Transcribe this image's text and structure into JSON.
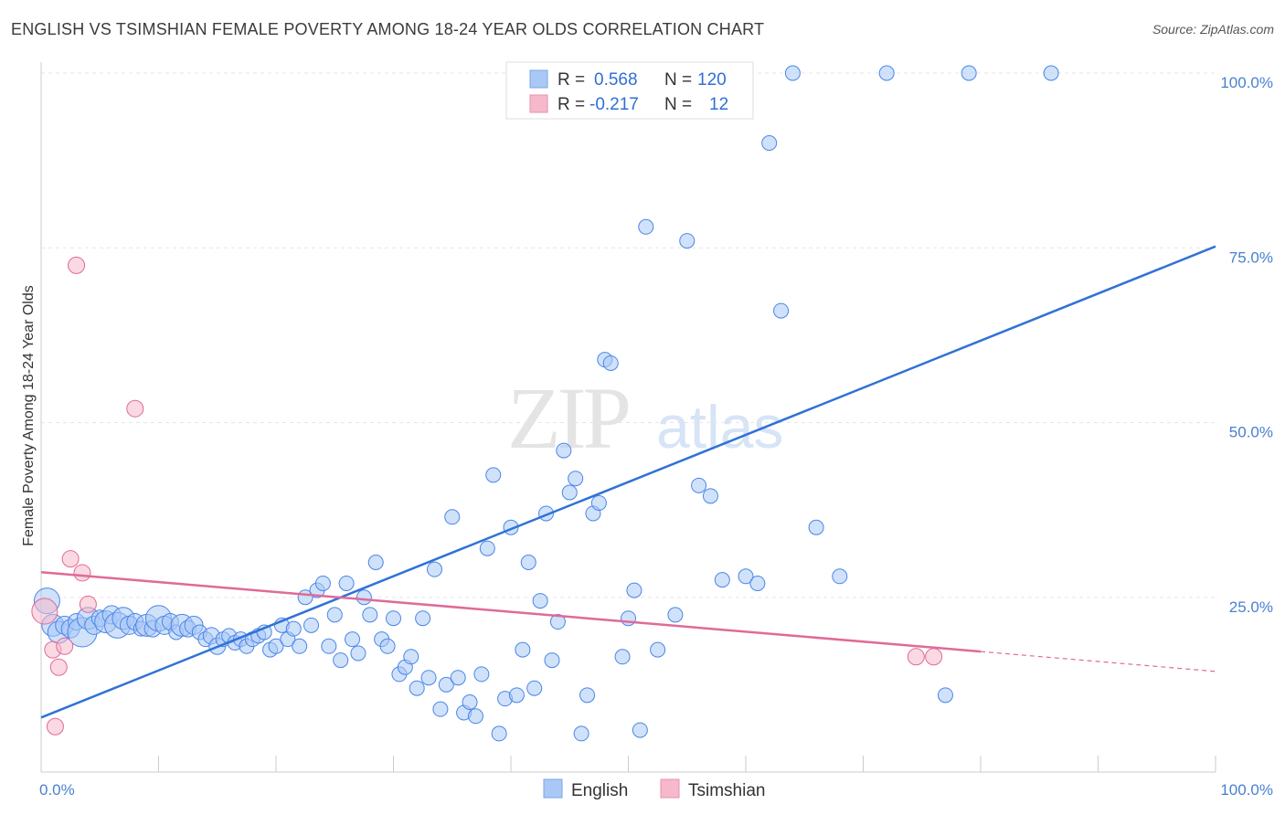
{
  "title": "ENGLISH VS TSIMSHIAN FEMALE POVERTY AMONG 18-24 YEAR OLDS CORRELATION CHART",
  "source": "Source: ZipAtlas.com",
  "watermark": {
    "zip": "ZIP",
    "atlas": "atlas"
  },
  "legend_top": {
    "rows": [
      {
        "r_label": "R =",
        "r_value": "0.568",
        "n_label": "N =",
        "n_value": "120",
        "color": "#aac8f5"
      },
      {
        "r_label": "R =",
        "r_value": "-0.217",
        "n_label": "N =",
        "n_value": "12",
        "color": "#f6b9cb"
      }
    ]
  },
  "legend_bottom": [
    {
      "label": "English",
      "color": "#aac8f5"
    },
    {
      "label": "Tsimshian",
      "color": "#f6b9cb"
    }
  ],
  "chart_data": {
    "type": "scatter",
    "title": "ENGLISH VS TSIMSHIAN FEMALE POVERTY AMONG 18-24 YEAR OLDS CORRELATION CHART",
    "xlabel": "",
    "ylabel": "Female Poverty Among 18-24 Year Olds",
    "xlim": [
      0,
      100
    ],
    "ylim": [
      0,
      100
    ],
    "x_tick_labels": [
      "0.0%",
      "100.0%"
    ],
    "y_tick_labels": [
      "25.0%",
      "50.0%",
      "75.0%",
      "100.0%"
    ],
    "y_ticks": [
      25,
      50,
      75,
      100
    ],
    "grid": true,
    "legend_position": "top-center",
    "colors": {
      "English": "#4a86e8",
      "English_fill": "#aac8f5",
      "Tsimshian": "#e06a98",
      "Tsimshian_fill": "#f6b9cb"
    },
    "series": [
      {
        "name": "English",
        "r": 0.568,
        "n": 120,
        "trend": {
          "x": [
            0,
            100
          ],
          "y": [
            7.8,
            75.2
          ]
        },
        "points": [
          [
            0.5,
            24.5,
            14
          ],
          [
            1,
            21,
            12
          ],
          [
            1.5,
            20,
            12
          ],
          [
            2,
            21,
            10
          ],
          [
            2.5,
            20.5,
            10
          ],
          [
            3,
            21.5,
            9
          ],
          [
            3.5,
            20,
            16
          ],
          [
            4,
            22,
            12
          ],
          [
            4.5,
            21,
            10
          ],
          [
            5,
            22,
            9
          ],
          [
            5.5,
            21.5,
            12
          ],
          [
            6,
            22.5,
            10
          ],
          [
            6.5,
            21,
            14
          ],
          [
            7,
            22,
            12
          ],
          [
            7.5,
            21,
            10
          ],
          [
            8,
            21.5,
            9
          ],
          [
            8.5,
            20.5,
            8
          ],
          [
            9,
            21,
            12
          ],
          [
            9.5,
            20.5,
            9
          ],
          [
            10,
            22,
            14
          ],
          [
            10.5,
            21,
            10
          ],
          [
            11,
            21.5,
            9
          ],
          [
            11.5,
            20,
            8
          ],
          [
            12,
            21,
            12
          ],
          [
            12.5,
            20.5,
            9
          ],
          [
            13,
            21,
            10
          ],
          [
            13.5,
            20,
            8
          ],
          [
            14,
            19,
            8
          ],
          [
            14.5,
            19.5,
            9
          ],
          [
            15,
            18,
            9
          ],
          [
            15.5,
            19,
            8
          ],
          [
            16,
            19.5,
            8
          ],
          [
            16.5,
            18.5,
            8
          ],
          [
            17,
            19,
            8
          ],
          [
            17.5,
            18,
            8
          ],
          [
            18,
            19,
            8
          ],
          [
            18.5,
            19.5,
            8
          ],
          [
            19,
            20,
            8
          ],
          [
            19.5,
            17.5,
            8
          ],
          [
            20,
            18,
            8
          ],
          [
            20.5,
            21,
            8
          ],
          [
            21,
            19,
            8
          ],
          [
            21.5,
            20.5,
            8
          ],
          [
            22,
            18,
            8
          ],
          [
            22.5,
            25,
            8
          ],
          [
            23,
            21,
            8
          ],
          [
            23.5,
            26,
            8
          ],
          [
            24,
            27,
            8
          ],
          [
            24.5,
            18,
            8
          ],
          [
            25,
            22.5,
            8
          ],
          [
            25.5,
            16,
            8
          ],
          [
            26,
            27,
            8
          ],
          [
            26.5,
            19,
            8
          ],
          [
            27,
            17,
            8
          ],
          [
            27.5,
            25,
            8
          ],
          [
            28,
            22.5,
            8
          ],
          [
            28.5,
            30,
            8
          ],
          [
            29,
            19,
            8
          ],
          [
            29.5,
            18,
            8
          ],
          [
            30,
            22,
            8
          ],
          [
            30.5,
            14,
            8
          ],
          [
            31,
            15,
            8
          ],
          [
            31.5,
            16.5,
            8
          ],
          [
            32,
            12,
            8
          ],
          [
            32.5,
            22,
            8
          ],
          [
            33,
            13.5,
            8
          ],
          [
            33.5,
            29,
            8
          ],
          [
            34,
            9,
            8
          ],
          [
            34.5,
            12.5,
            8
          ],
          [
            35,
            36.5,
            8
          ],
          [
            35.5,
            13.5,
            8
          ],
          [
            36,
            8.5,
            8
          ],
          [
            36.5,
            10,
            8
          ],
          [
            37,
            8,
            8
          ],
          [
            37.5,
            14,
            8
          ],
          [
            38,
            32,
            8
          ],
          [
            38.5,
            42.5,
            8
          ],
          [
            39,
            5.5,
            8
          ],
          [
            39.5,
            10.5,
            8
          ],
          [
            40,
            35,
            8
          ],
          [
            40.5,
            11,
            8
          ],
          [
            41,
            17.5,
            8
          ],
          [
            41.5,
            30,
            8
          ],
          [
            42,
            12,
            8
          ],
          [
            42.5,
            24.5,
            8
          ],
          [
            43,
            37,
            8
          ],
          [
            43.5,
            16,
            8
          ],
          [
            44,
            21.5,
            8
          ],
          [
            44.5,
            46,
            8
          ],
          [
            45,
            40,
            8
          ],
          [
            45.5,
            42,
            8
          ],
          [
            46,
            5.5,
            8
          ],
          [
            46.5,
            11,
            8
          ],
          [
            47,
            37,
            8
          ],
          [
            47.5,
            38.5,
            8
          ],
          [
            48,
            59,
            8
          ],
          [
            48.5,
            58.5,
            8
          ],
          [
            49,
            100,
            8
          ],
          [
            49.5,
            16.5,
            8
          ],
          [
            50,
            22,
            8
          ],
          [
            50.5,
            26,
            8
          ],
          [
            51,
            6,
            8
          ],
          [
            51.5,
            78,
            8
          ],
          [
            52,
            100,
            8
          ],
          [
            52.5,
            17.5,
            8
          ],
          [
            54,
            22.5,
            8
          ],
          [
            55,
            76,
            8
          ],
          [
            56,
            41,
            8
          ],
          [
            57,
            39.5,
            8
          ],
          [
            58,
            27.5,
            8
          ],
          [
            59,
            100,
            8
          ],
          [
            60,
            28,
            8
          ],
          [
            61,
            27,
            8
          ],
          [
            62,
            90,
            8
          ],
          [
            63,
            66,
            8
          ],
          [
            64,
            100,
            8
          ],
          [
            66,
            35,
            8
          ],
          [
            68,
            28,
            8
          ],
          [
            72,
            100,
            8
          ],
          [
            77,
            11,
            8
          ],
          [
            79,
            100,
            8
          ],
          [
            86,
            100,
            8
          ]
        ]
      },
      {
        "name": "Tsimshian",
        "r": -0.217,
        "n": 12,
        "trend": {
          "x": [
            0,
            100
          ],
          "y": [
            28.6,
            14.4
          ],
          "solid_until_x": 80
        },
        "points": [
          [
            0.3,
            23,
            14
          ],
          [
            1,
            17.5,
            9
          ],
          [
            1.5,
            15,
            9
          ],
          [
            2,
            18,
            9
          ],
          [
            2.5,
            30.5,
            9
          ],
          [
            3,
            72.5,
            9
          ],
          [
            3.5,
            28.5,
            9
          ],
          [
            4,
            24,
            9
          ],
          [
            8,
            52,
            9
          ],
          [
            1.2,
            6.5,
            9
          ],
          [
            74.5,
            16.5,
            9
          ],
          [
            76,
            16.5,
            9
          ]
        ]
      }
    ]
  }
}
